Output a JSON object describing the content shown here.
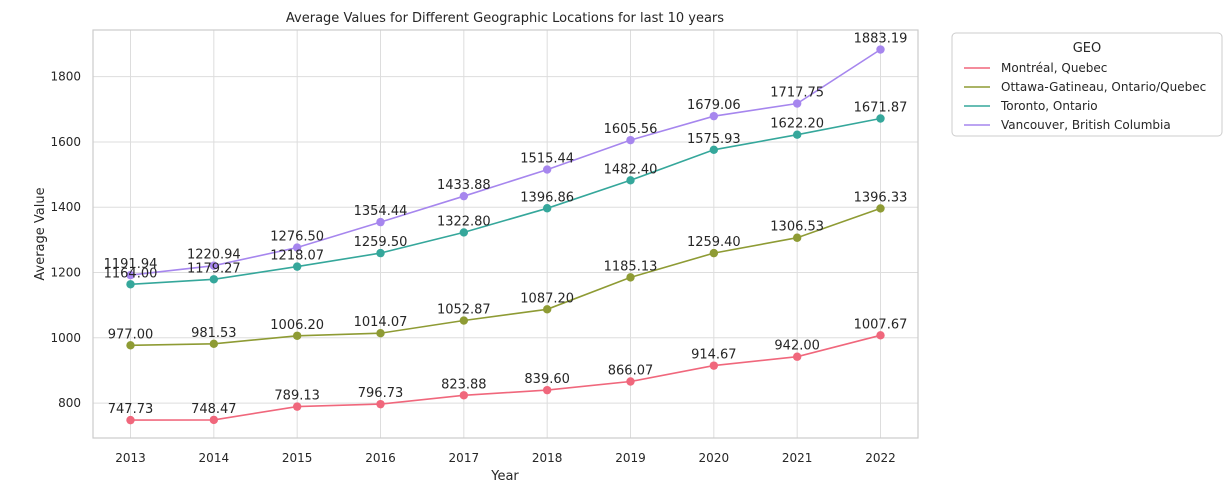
{
  "chart_data": {
    "type": "line",
    "title": "Average Values for Different Geographic Locations for last 10 years",
    "xlabel": "Year",
    "ylabel": "Average Value",
    "x": [
      2013,
      2014,
      2015,
      2016,
      2017,
      2018,
      2019,
      2020,
      2021,
      2022
    ],
    "x_tick_labels": [
      "2013",
      "2014",
      "2015",
      "2016",
      "2017",
      "2018",
      "2019",
      "2020",
      "2021",
      "2022"
    ],
    "xlim": [
      2012.55,
      2022.45
    ],
    "ylim": [
      693,
      1943
    ],
    "y_ticks": [
      800,
      1000,
      1200,
      1400,
      1600,
      1800
    ],
    "y_tick_labels": [
      "800",
      "1000",
      "1200",
      "1400",
      "1600",
      "1800"
    ],
    "grid": true,
    "legend": {
      "title": "GEO",
      "placement": "outside-right"
    },
    "series": [
      {
        "name": "Montréal, Quebec",
        "color": "#f0677c",
        "values": [
          747.73,
          748.47,
          789.13,
          796.73,
          823.88,
          839.6,
          866.07,
          914.67,
          942.0,
          1007.67
        ],
        "labels": [
          "747.73",
          "748.47",
          "789.13",
          "796.73",
          "823.88",
          "839.60",
          "866.07",
          "914.67",
          "942.00",
          "1007.67"
        ]
      },
      {
        "name": "Ottawa-Gatineau, Ontario/Quebec",
        "color": "#8e9b34",
        "values": [
          977.0,
          981.53,
          1006.2,
          1014.07,
          1052.87,
          1087.2,
          1185.13,
          1259.4,
          1306.53,
          1396.33
        ],
        "labels": [
          "977.00",
          "981.53",
          "1006.20",
          "1014.07",
          "1052.87",
          "1087.20",
          "1185.13",
          "1259.40",
          "1306.53",
          "1396.33"
        ]
      },
      {
        "name": "Toronto, Ontario",
        "color": "#35a79b",
        "values": [
          1164.0,
          1179.27,
          1218.07,
          1259.5,
          1322.8,
          1396.86,
          1482.4,
          1575.93,
          1622.2,
          1671.87
        ],
        "labels": [
          "1164.00",
          "1179.27",
          "1218.07",
          "1259.50",
          "1322.80",
          "1396.86",
          "1482.40",
          "1575.93",
          "1622.20",
          "1671.87"
        ]
      },
      {
        "name": "Vancouver, British Columbia",
        "color": "#a686ee",
        "values": [
          1191.94,
          1220.94,
          1276.5,
          1354.44,
          1433.88,
          1515.44,
          1605.56,
          1679.06,
          1717.75,
          1883.19
        ],
        "labels": [
          "1191.94",
          "1220.94",
          "1276.50",
          "1354.44",
          "1433.88",
          "1515.44",
          "1605.56",
          "1679.06",
          "1717.75",
          "1883.19"
        ]
      }
    ]
  }
}
